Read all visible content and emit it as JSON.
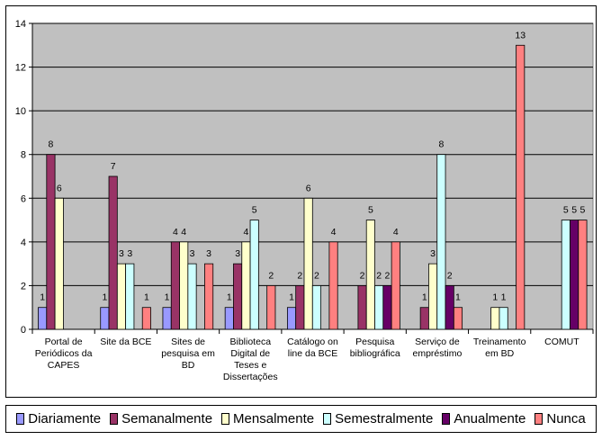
{
  "chart_data": {
    "type": "bar",
    "categories": [
      "Portal de Periódicos da CAPES",
      "Site da BCE",
      "Sites de pesquisa em BD",
      "Biblioteca Digital de Teses e Dissertações",
      "Catálogo on line da BCE",
      "Pesquisa bibliográfica",
      "Serviço de empréstimo",
      "Treinamento em BD",
      "COMUT"
    ],
    "category_lines": [
      [
        "Portal de",
        "Periódicos da",
        "CAPES"
      ],
      [
        "Site da BCE"
      ],
      [
        "Sites de",
        "pesquisa em",
        "BD"
      ],
      [
        "Biblioteca",
        "Digital de",
        "Teses e",
        "Dissertações"
      ],
      [
        "Catálogo on",
        "line da BCE"
      ],
      [
        "Pesquisa",
        "bibliográfica"
      ],
      [
        "Serviço de",
        "empréstimo"
      ],
      [
        "Treinamento",
        "em BD"
      ],
      [
        "COMUT"
      ]
    ],
    "series": [
      {
        "name": "Diariamente",
        "color": "#9999FF",
        "values": [
          1,
          1,
          1,
          1,
          1,
          null,
          null,
          null,
          null
        ]
      },
      {
        "name": "Semanalmente",
        "color": "#993366",
        "values": [
          8,
          7,
          4,
          3,
          2,
          2,
          1,
          null,
          null
        ]
      },
      {
        "name": "Mensalmente",
        "color": "#FFFFCC",
        "values": [
          6,
          3,
          4,
          4,
          6,
          5,
          3,
          1,
          null
        ]
      },
      {
        "name": "Semestralmente",
        "color": "#CCFFFF",
        "values": [
          null,
          3,
          3,
          5,
          2,
          2,
          8,
          1,
          5
        ]
      },
      {
        "name": "Anualmente",
        "color": "#660066",
        "values": [
          null,
          null,
          null,
          null,
          null,
          2,
          2,
          null,
          5
        ]
      },
      {
        "name": "Nunca",
        "color": "#FF8080",
        "values": [
          null,
          1,
          3,
          2,
          4,
          4,
          1,
          13,
          5
        ]
      }
    ],
    "ylim": [
      0,
      14
    ],
    "yticks": [
      0,
      2,
      4,
      6,
      8,
      10,
      12,
      14
    ],
    "plot_background": "#C0C0C0",
    "grid": "horizontal",
    "legend_position": "bottom"
  }
}
